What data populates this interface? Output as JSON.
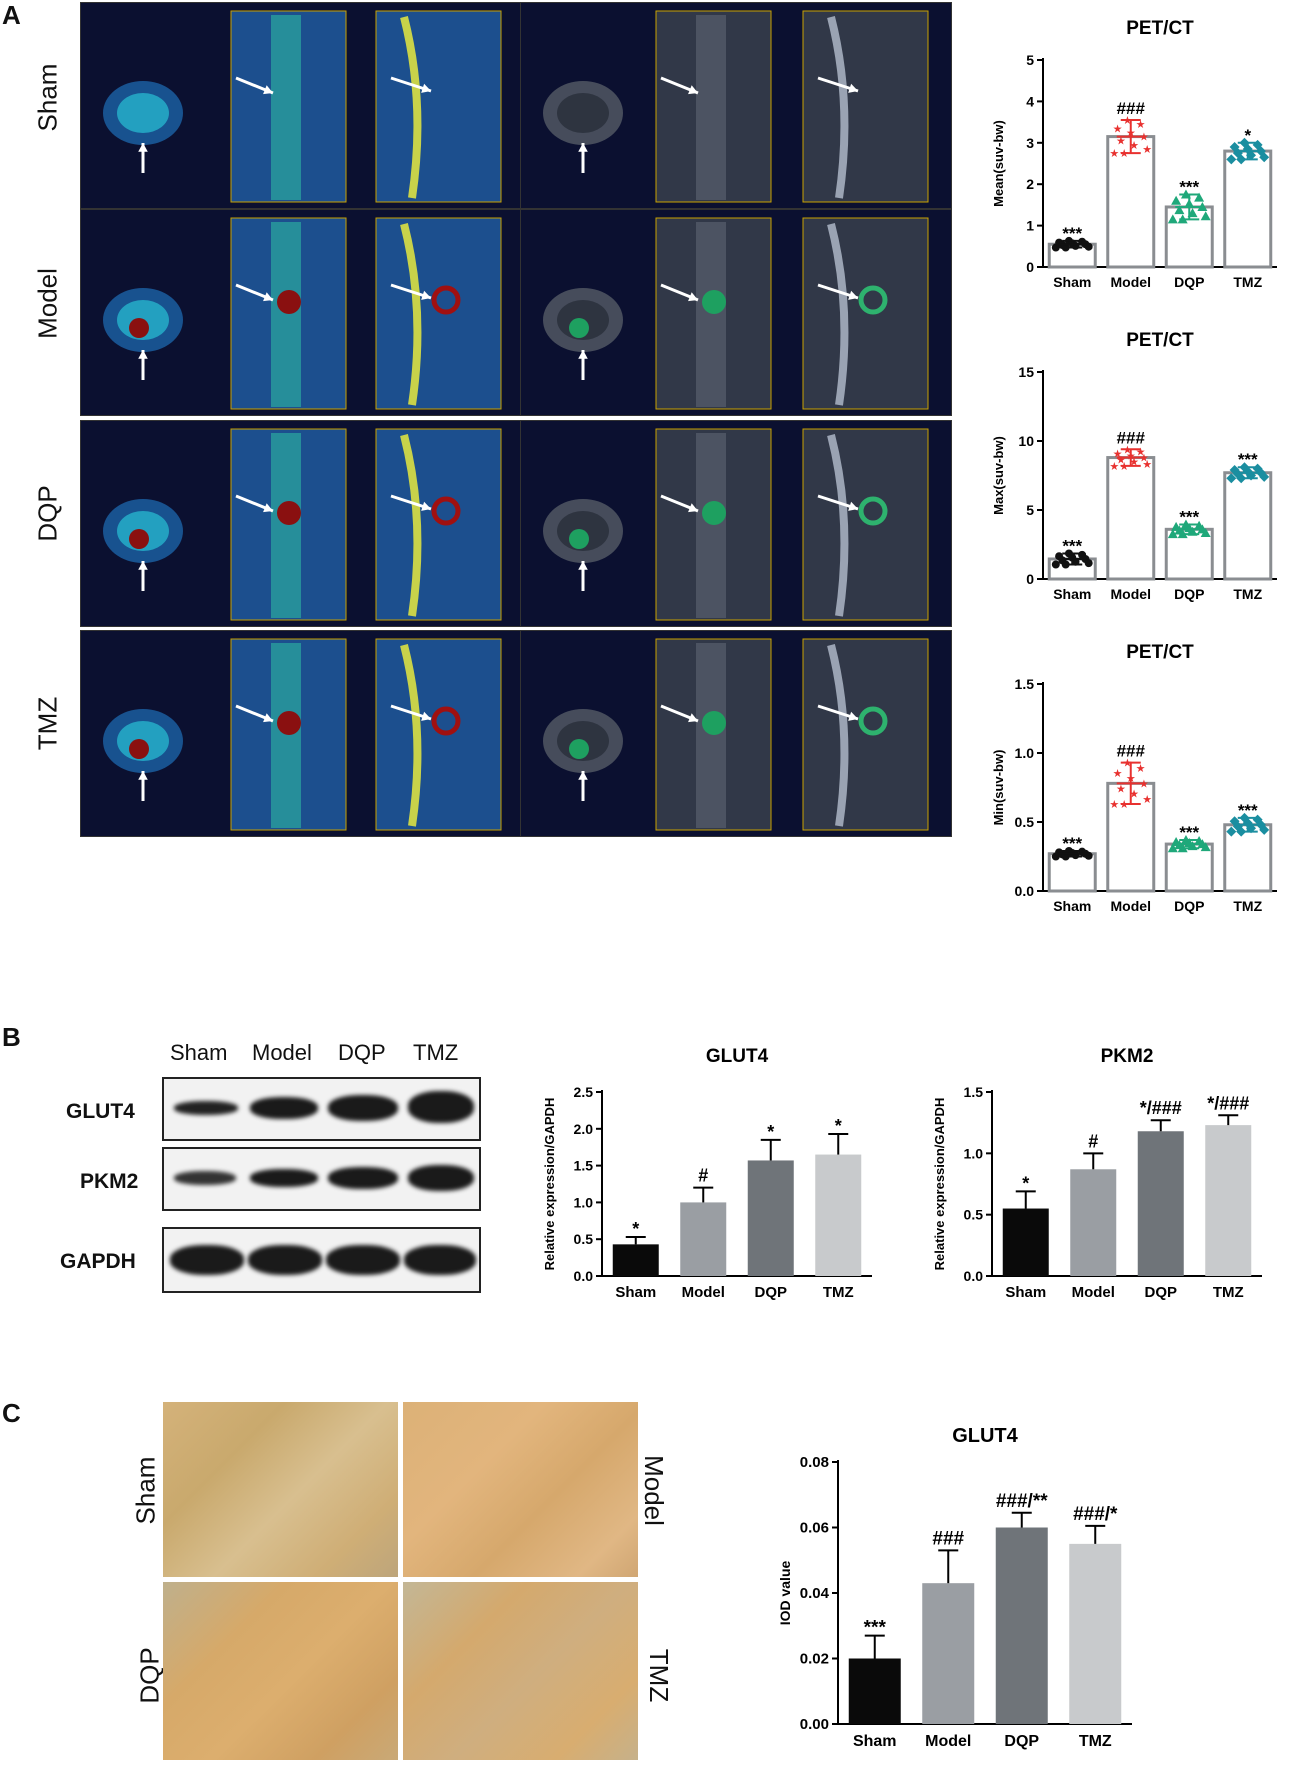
{
  "panels": {
    "a": "A",
    "b": "B",
    "c": "C"
  },
  "groups": [
    "Sham",
    "Model",
    "DQP",
    "TMZ"
  ],
  "colors": {
    "sham": "#111111",
    "model": "#e8312f",
    "dqp": "#1fa87a",
    "tmz": "#1b8ea0",
    "bar_sham": "#0a0a0a",
    "bar_model": "#9a9ea3",
    "bar_dqp": "#6f7479",
    "bar_tmz": "#c8cacc"
  },
  "panelB": {
    "proteins": [
      "GLUT4",
      "PKM2",
      "GAPDH"
    ]
  },
  "chart_data": [
    {
      "id": "petct-mean",
      "type": "scatter-bar",
      "title": "PET/CT",
      "ylabel": "Mean(suv-bw)",
      "categories": [
        "Sham",
        "Model",
        "DQP",
        "TMZ"
      ],
      "values": [
        0.55,
        3.15,
        1.45,
        2.8
      ],
      "errors": [
        0.08,
        0.4,
        0.3,
        0.2
      ],
      "ylim": [
        0,
        5
      ],
      "yticks": [
        "0",
        "1",
        "2",
        "3",
        "4",
        "5"
      ],
      "ytick_values": [
        0,
        1,
        2,
        3,
        4,
        5
      ],
      "annotations": [
        "***",
        "###",
        "***",
        "*"
      ]
    },
    {
      "id": "petct-max",
      "type": "scatter-bar",
      "title": "PET/CT",
      "ylabel": "Max(suv-bw)",
      "categories": [
        "Sham",
        "Model",
        "DQP",
        "TMZ"
      ],
      "values": [
        1.45,
        8.8,
        3.6,
        7.7
      ],
      "errors": [
        0.4,
        0.6,
        0.35,
        0.4
      ],
      "ylim": [
        0,
        15
      ],
      "yticks": [
        "0",
        "5",
        "10",
        "15"
      ],
      "ytick_values": [
        0,
        5,
        10,
        15
      ],
      "annotations": [
        "***",
        "###",
        "***",
        "***"
      ]
    },
    {
      "id": "petct-min",
      "type": "scatter-bar",
      "title": "PET/CT",
      "ylabel": "Min(suv-bw)",
      "categories": [
        "Sham",
        "Model",
        "DQP",
        "TMZ"
      ],
      "values": [
        0.27,
        0.78,
        0.34,
        0.48
      ],
      "errors": [
        0.02,
        0.15,
        0.03,
        0.05
      ],
      "ylim": [
        0,
        1.5
      ],
      "yticks": [
        "0.0",
        "0.5",
        "1.0",
        "1.5"
      ],
      "ytick_values": [
        0,
        0.5,
        1.0,
        1.5
      ],
      "annotations": [
        "***",
        "###",
        "***",
        "***"
      ]
    },
    {
      "id": "glut4-wb",
      "type": "bar",
      "title": "GLUT4",
      "ylabel": "Relative expression/GAPDH",
      "categories": [
        "Sham",
        "Model",
        "DQP",
        "TMZ"
      ],
      "values": [
        0.43,
        1.0,
        1.57,
        1.65
      ],
      "errors": [
        0.1,
        0.2,
        0.28,
        0.28
      ],
      "ylim": [
        0,
        2.5
      ],
      "yticks": [
        "0.0",
        "0.5",
        "1.0",
        "1.5",
        "2.0",
        "2.5"
      ],
      "ytick_values": [
        0,
        0.5,
        1.0,
        1.5,
        2.0,
        2.5
      ],
      "annotations": [
        "*",
        "#",
        "*",
        "*"
      ]
    },
    {
      "id": "pkm2-wb",
      "type": "bar",
      "title": "PKM2",
      "ylabel": "Relative expression/GAPDH",
      "categories": [
        "Sham",
        "Model",
        "DQP",
        "TMZ"
      ],
      "values": [
        0.55,
        0.87,
        1.18,
        1.23
      ],
      "errors": [
        0.14,
        0.13,
        0.09,
        0.08
      ],
      "ylim": [
        0,
        1.5
      ],
      "yticks": [
        "0.0",
        "0.5",
        "1.0",
        "1.5"
      ],
      "ytick_values": [
        0,
        0.5,
        1.0,
        1.5
      ],
      "annotations": [
        "*",
        "#",
        "*/###",
        "*/###"
      ]
    },
    {
      "id": "glut4-iod",
      "type": "bar",
      "title": "GLUT4",
      "ylabel": "IOD value",
      "categories": [
        "Sham",
        "Model",
        "DQP",
        "TMZ"
      ],
      "values": [
        0.02,
        0.043,
        0.06,
        0.055
      ],
      "errors": [
        0.007,
        0.01,
        0.0045,
        0.0055
      ],
      "ylim": [
        0,
        0.08
      ],
      "yticks": [
        "0.00",
        "0.02",
        "0.04",
        "0.06",
        "0.08"
      ],
      "ytick_values": [
        0,
        0.02,
        0.04,
        0.06,
        0.08
      ],
      "annotations": [
        "***",
        "###",
        "###/**",
        "###/*"
      ]
    }
  ]
}
